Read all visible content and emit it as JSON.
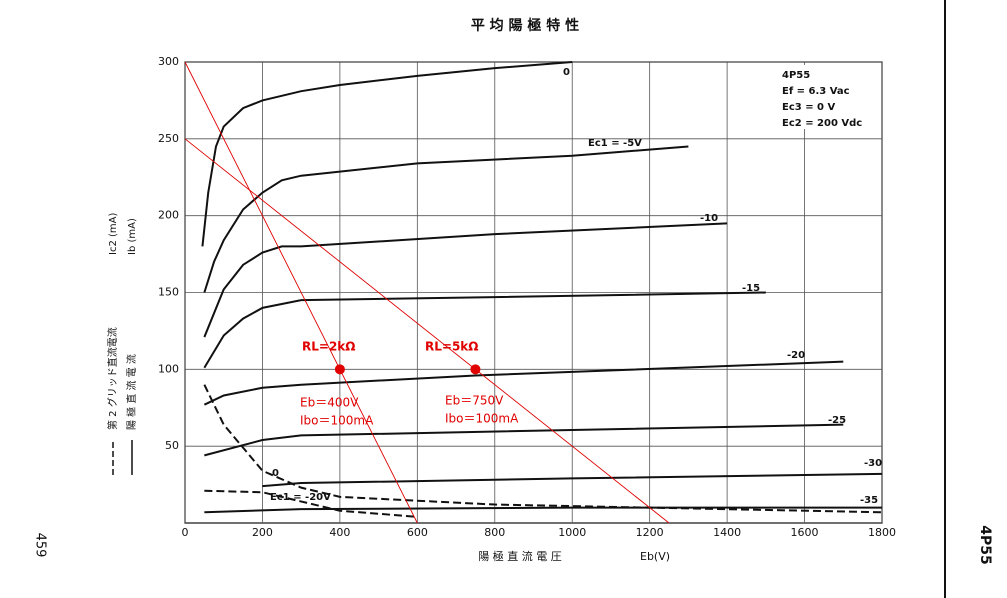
{
  "page_side": {
    "number": "459",
    "code": "4P55"
  },
  "chart_data": {
    "type": "line",
    "title": "平 均 陽 極 特 性",
    "x_label": "陽 極 直 流 電 圧",
    "x_symbol": "Eb(V)",
    "y_labels": [
      "Ic2 (mA)",
      "Ib (mA)"
    ],
    "legend": [
      {
        "label": "第 2 グリッド直流電流",
        "dashed": true
      },
      {
        "label": "陽 極 直 流 電 流",
        "dashed": false
      }
    ],
    "info": [
      "4P55",
      "Ef = 6.3 Vac",
      "Ec3 = 0 V",
      "Ec2 = 200 Vdc"
    ],
    "xlim": [
      0,
      1800
    ],
    "ylim": [
      0,
      300
    ],
    "xticks": [
      0,
      200,
      400,
      600,
      800,
      1000,
      1200,
      1400,
      1600,
      1800
    ],
    "yticks": [
      50,
      100,
      150,
      200,
      250,
      300
    ],
    "grid": true,
    "series": [
      {
        "name": "0",
        "color": "#111",
        "dashed": false,
        "x": [
          45,
          60,
          80,
          100,
          150,
          200,
          300,
          400,
          600,
          800,
          1000
        ],
        "values": [
          180,
          215,
          245,
          258,
          270,
          275,
          281,
          285,
          291,
          296,
          300
        ]
      },
      {
        "name": "Ec1 = -5V",
        "color": "#111",
        "dashed": false,
        "x": [
          50,
          75,
          100,
          150,
          200,
          250,
          300,
          600,
          1000,
          1300
        ],
        "values": [
          150,
          170,
          184,
          204,
          215,
          223,
          226,
          234,
          239,
          245
        ]
      },
      {
        "name": "-10",
        "color": "#111",
        "dashed": false,
        "x": [
          50,
          100,
          150,
          200,
          250,
          300,
          800,
          1400
        ],
        "values": [
          121,
          152,
          168,
          176,
          180,
          180,
          188,
          195
        ]
      },
      {
        "name": "-15",
        "color": "#111",
        "dashed": false,
        "x": [
          50,
          100,
          150,
          200,
          300,
          800,
          1500
        ],
        "values": [
          101,
          122,
          133,
          140,
          145,
          147,
          150
        ]
      },
      {
        "name": "-20",
        "color": "#111",
        "dashed": false,
        "x": [
          50,
          100,
          200,
          300,
          750,
          1700
        ],
        "values": [
          77,
          83,
          88,
          90,
          96,
          105
        ]
      },
      {
        "name": "-25",
        "color": "#111",
        "dashed": false,
        "x": [
          50,
          200,
          300,
          1700
        ],
        "values": [
          44,
          54,
          57,
          64
        ]
      },
      {
        "name": "-30",
        "color": "#111",
        "dashed": false,
        "x": [
          200,
          300,
          1000,
          1800
        ],
        "values": [
          24,
          26,
          29,
          32
        ]
      },
      {
        "name": "-35",
        "color": "#111",
        "dashed": false,
        "x": [
          50,
          300,
          1000,
          1800
        ],
        "values": [
          7,
          9,
          10,
          10
        ]
      },
      {
        "name": "0",
        "color": "#111",
        "dashed": true,
        "x": [
          50,
          100,
          200,
          300,
          400,
          800,
          1800
        ],
        "values": [
          90,
          64,
          34,
          23,
          17,
          12,
          7
        ]
      },
      {
        "name": "Ec1 = -20V",
        "color": "#111",
        "dashed": true,
        "x": [
          50,
          200,
          400,
          600
        ],
        "values": [
          21,
          20,
          8,
          4
        ]
      },
      {
        "name": "RL=2kΩ",
        "color": "#e00000",
        "dashed": false,
        "x": [
          0,
          600
        ],
        "values": [
          300,
          0
        ]
      },
      {
        "name": "RL=5kΩ",
        "color": "#e00000",
        "dashed": false,
        "x": [
          0,
          1250
        ],
        "values": [
          250,
          0
        ]
      }
    ],
    "points": [
      {
        "x": 400,
        "y": 100,
        "color": "#e00000",
        "labels": [
          "Eb＝400V",
          "Ibo＝100mA"
        ]
      },
      {
        "x": 750,
        "y": 100,
        "color": "#e00000",
        "labels": [
          "Eb＝750V",
          "Ibo＝100mA"
        ]
      }
    ]
  }
}
